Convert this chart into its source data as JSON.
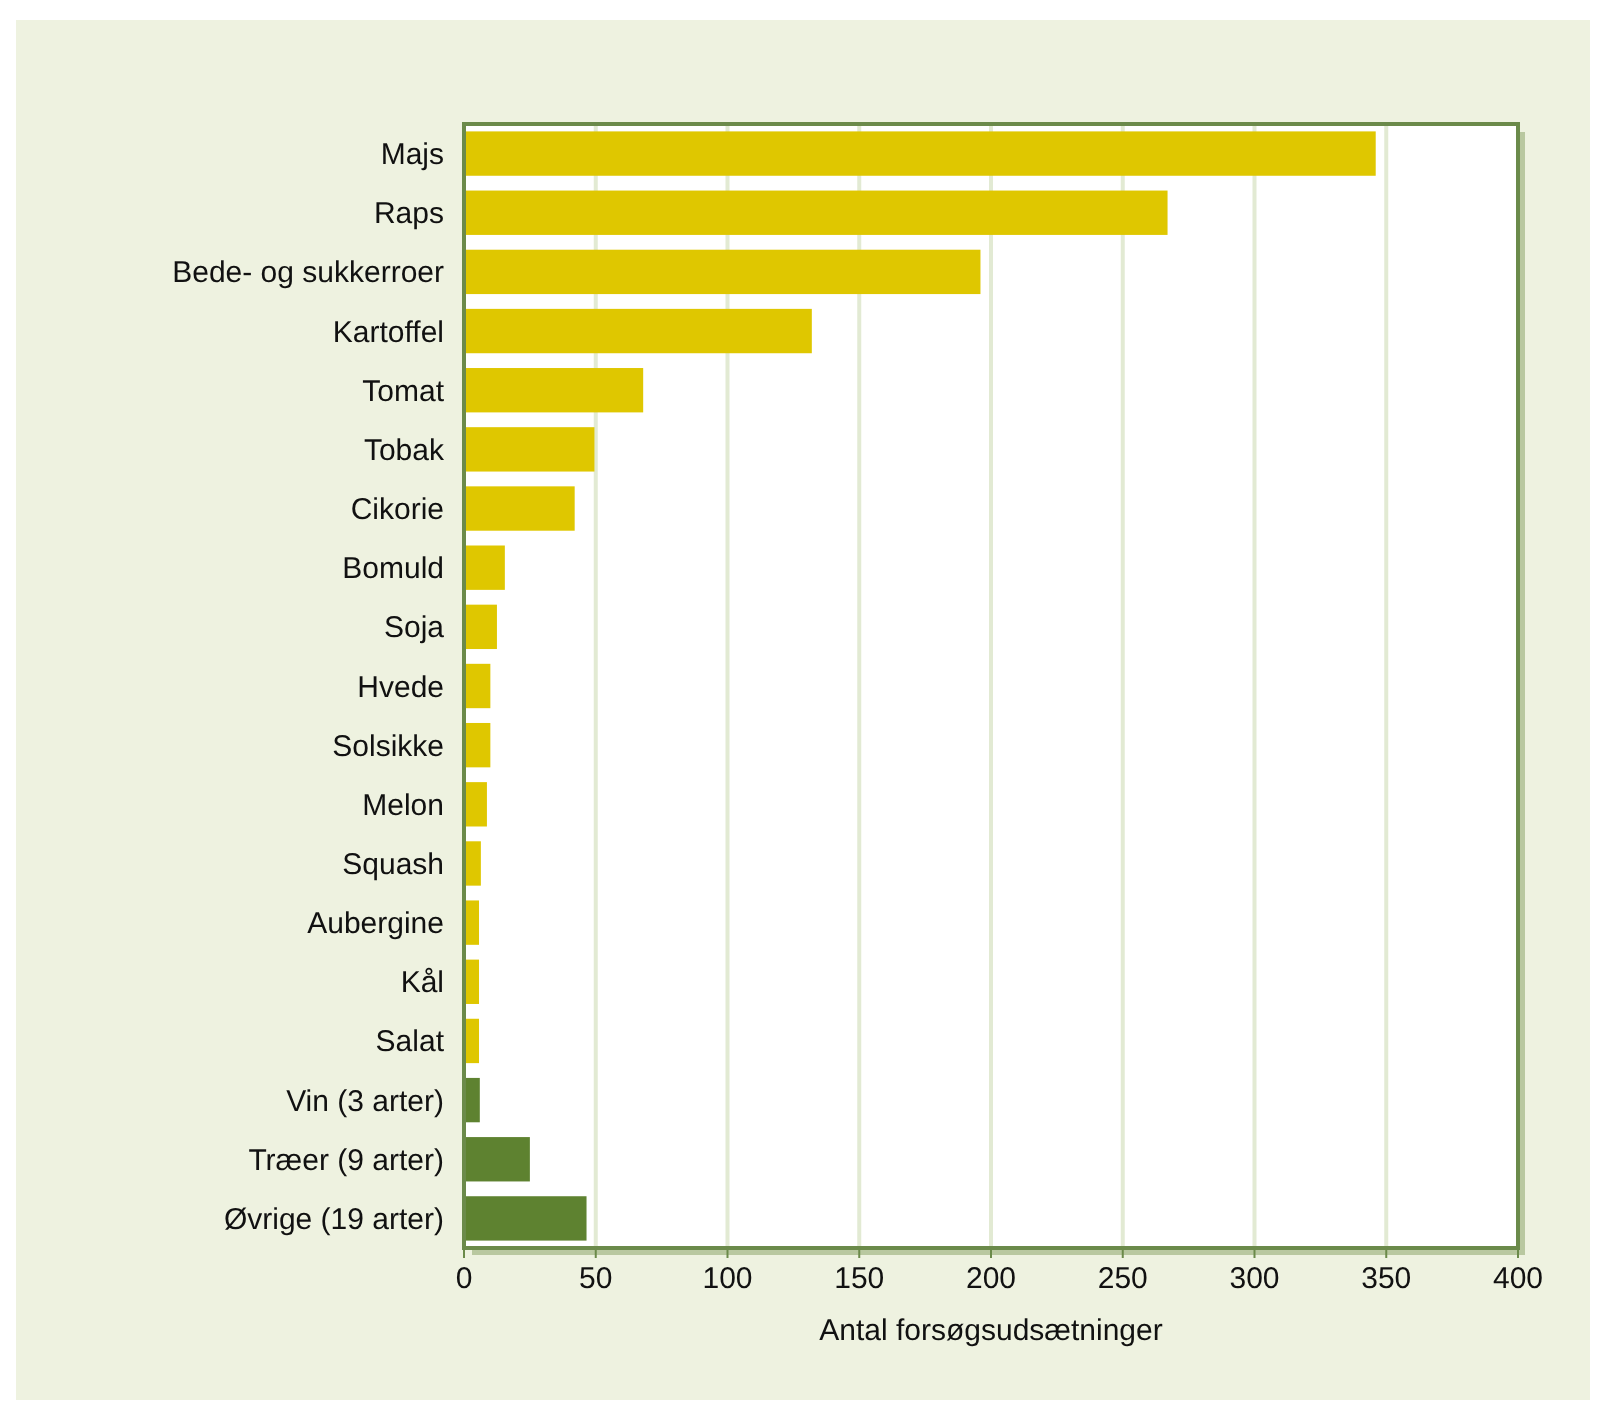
{
  "chart_data": {
    "type": "bar",
    "orientation": "horizontal",
    "xlabel": "Antal forsøgsudsætninger",
    "categories": [
      "Majs",
      "Raps",
      "Bede- og sukkerroer",
      "Kartoffel",
      "Tomat",
      "Tobak",
      "Cikorie",
      "Bomuld",
      "Soja",
      "Hvede",
      "Solsikke",
      "Melon",
      "Squash",
      "Aubergine",
      "Kål",
      "Salat",
      "Vin (3 arter)",
      "Træer (9 arter)",
      "Øvrige (19 arter)"
    ],
    "values": [
      346,
      267,
      196,
      132,
      68,
      49.5,
      42,
      15.5,
      12.5,
      10,
      10,
      8.7,
      6.4,
      5.7,
      5.7,
      5.7,
      6,
      25,
      46.5
    ],
    "colors": [
      "#dfc700",
      "#dfc700",
      "#dfc700",
      "#dfc700",
      "#dfc700",
      "#dfc700",
      "#dfc700",
      "#dfc700",
      "#dfc700",
      "#dfc700",
      "#dfc700",
      "#dfc700",
      "#dfc700",
      "#dfc700",
      "#dfc700",
      "#dfc700",
      "#5e8230",
      "#5e8230",
      "#5e8230"
    ],
    "xlim": [
      0,
      400
    ],
    "xticks": [
      0,
      50,
      100,
      150,
      200,
      250,
      300,
      350,
      400
    ],
    "grid": "x"
  }
}
